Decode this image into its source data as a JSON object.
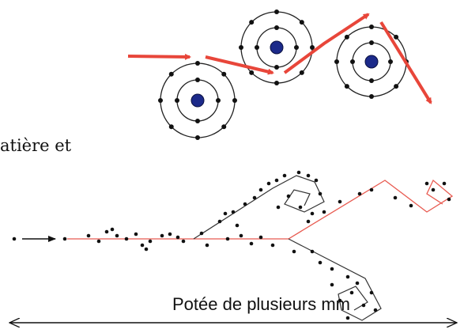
{
  "caption_fragment": "atière et",
  "scale_label": "Potée de plusieurs mm"
}
